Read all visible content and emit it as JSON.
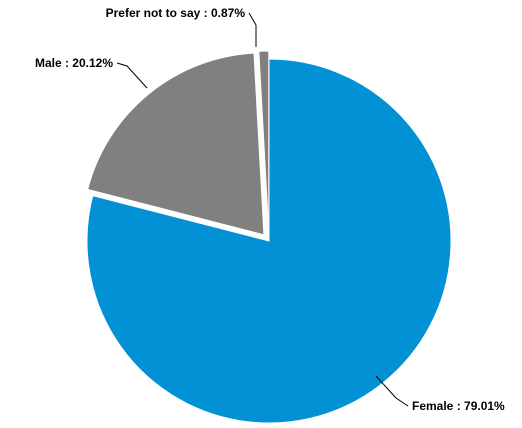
{
  "chart_data": {
    "type": "pie",
    "title": "",
    "slices": [
      {
        "label": "Female",
        "value": 79.01,
        "display": "Female : 79.01%",
        "color": "#0391d6"
      },
      {
        "label": "Male",
        "value": 20.12,
        "display": "Male : 20.12%",
        "color": "#808080"
      },
      {
        "label": "Prefer not to say",
        "value": 0.87,
        "display": "Prefer not to say : 0.87%",
        "color": "#808080"
      }
    ],
    "start": "12 o'clock",
    "direction": "clockwise",
    "exploded": [
      "Male",
      "Prefer not to say"
    ]
  }
}
